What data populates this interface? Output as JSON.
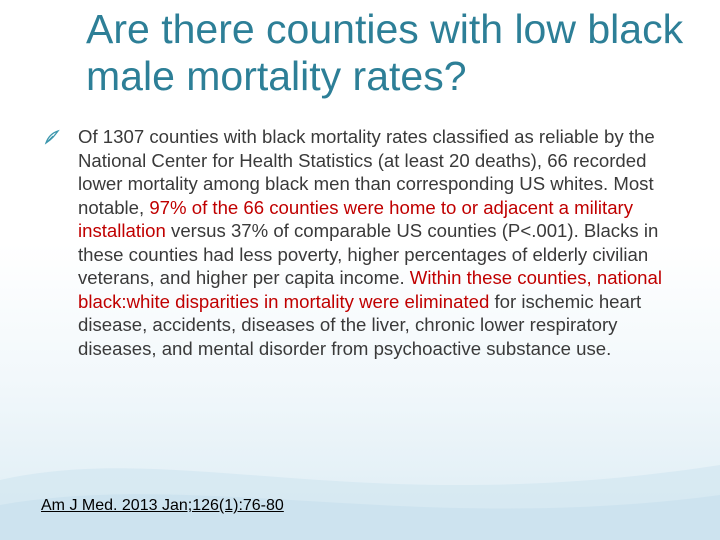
{
  "slide": {
    "title": "Are there counties with low black male mortality rates?",
    "bullet_icon": "feather-bullet-icon",
    "paragraph": [
      {
        "text": "Of 1307 counties with black mortality rates classified as reliable by the National Center for Health Statistics (at least 20 deaths), 66 recorded lower mortality among black men than corresponding US whites. Most notable, ",
        "highlight": false
      },
      {
        "text": "97% of the 66 counties were home to or adjacent a military installation",
        "highlight": true
      },
      {
        "text": " versus 37% of comparable US counties (P<.001). Blacks in these counties had less poverty, higher percentages of elderly civilian veterans, and higher per capita income. ",
        "highlight": false
      },
      {
        "text": "Within these counties, national black:white disparities in mortality were eliminated",
        "highlight": true
      },
      {
        "text": " for ischemic heart disease, accidents, diseases of the liver, chronic lower respiratory diseases, and mental disorder from psychoactive substance use.",
        "highlight": false
      }
    ],
    "citation": "Am J Med. 2013 Jan;126(1):76-80",
    "colors": {
      "title": "#2d7f97",
      "highlight": "#c00000",
      "body": "#3a3a3a"
    }
  }
}
